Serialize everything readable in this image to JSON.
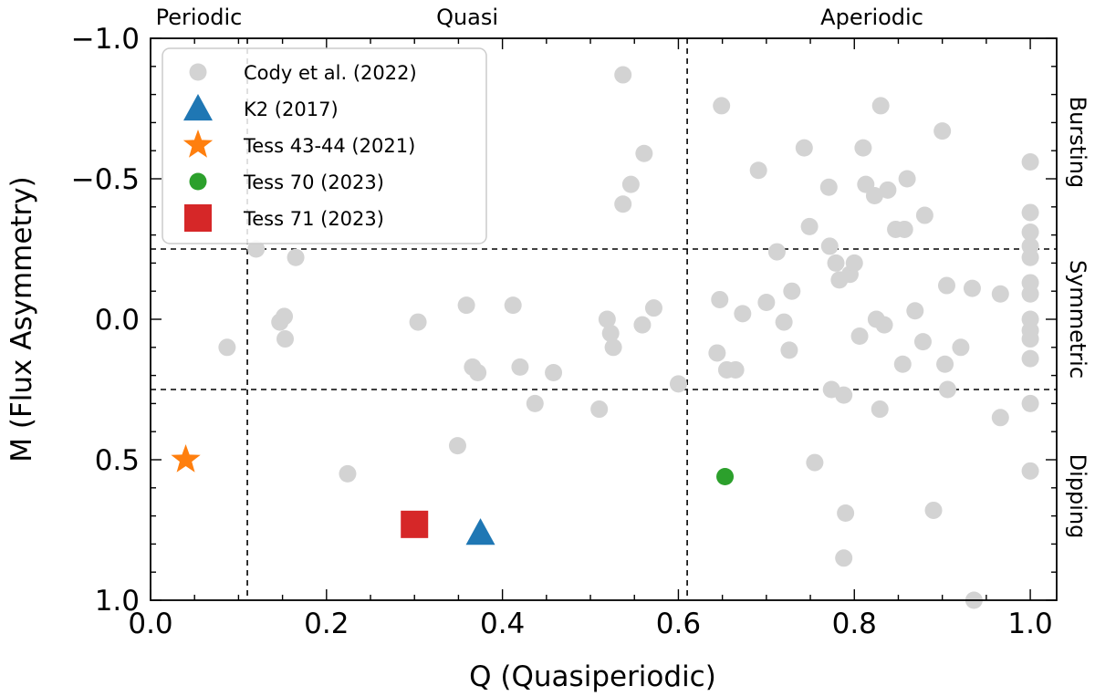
{
  "chart_data": {
    "type": "scatter",
    "xlabel": "Q (Quasiperiodic)",
    "ylabel": "M (Flux Asymmetry)",
    "xlim": [
      0.0,
      1.03
    ],
    "ylim": [
      1.0,
      -1.0
    ],
    "y_inverted": true,
    "x_ticks": [
      {
        "value": 0.0,
        "label": "0.0"
      },
      {
        "value": 0.2,
        "label": "0.2"
      },
      {
        "value": 0.4,
        "label": "0.4"
      },
      {
        "value": 0.6,
        "label": "0.6"
      },
      {
        "value": 0.8,
        "label": "0.8"
      },
      {
        "value": 1.0,
        "label": "1.0"
      }
    ],
    "y_ticks": [
      {
        "value": -1.0,
        "label": "−1.0"
      },
      {
        "value": -0.5,
        "label": "−0.5"
      },
      {
        "value": 0.0,
        "label": "0.0"
      },
      {
        "value": 0.5,
        "label": "0.5"
      },
      {
        "value": 1.0,
        "label": "1.0"
      }
    ],
    "grid": false,
    "legend_position": "top-left",
    "vertical_dividers": [
      0.11,
      0.61
    ],
    "horizontal_dividers": [
      -0.25,
      0.25
    ],
    "top_region_labels": [
      {
        "label": "Periodic",
        "x": 0.055
      },
      {
        "label": "Quasi",
        "x": 0.36
      },
      {
        "label": "Aperiodic",
        "x": 0.82
      }
    ],
    "right_region_labels": [
      {
        "label": "Bursting",
        "y": -0.63
      },
      {
        "label": "Symmetric",
        "y": 0.0
      },
      {
        "label": "Dipping",
        "y": 0.63
      }
    ],
    "series": [
      {
        "name": "Cody et al. (2022)",
        "marker": "circle",
        "color": "#d3d3d3",
        "points": [
          [
            0.537,
            -0.87
          ],
          [
            0.087,
            0.1
          ],
          [
            0.12,
            -0.25
          ],
          [
            0.165,
            -0.22
          ],
          [
            0.147,
            0.01
          ],
          [
            0.152,
            -0.01
          ],
          [
            0.153,
            0.07
          ],
          [
            0.224,
            0.55
          ],
          [
            0.304,
            0.01
          ],
          [
            0.349,
            0.45
          ],
          [
            0.359,
            -0.05
          ],
          [
            0.366,
            0.17
          ],
          [
            0.372,
            0.19
          ],
          [
            0.412,
            -0.05
          ],
          [
            0.42,
            0.17
          ],
          [
            0.437,
            0.3
          ],
          [
            0.458,
            0.19
          ],
          [
            0.51,
            0.32
          ],
          [
            0.519,
            0.0
          ],
          [
            0.523,
            0.05
          ],
          [
            0.526,
            0.1
          ],
          [
            0.537,
            -0.41
          ],
          [
            0.546,
            -0.48
          ],
          [
            0.559,
            0.02
          ],
          [
            0.561,
            -0.59
          ],
          [
            0.572,
            -0.04
          ],
          [
            0.6,
            0.23
          ],
          [
            0.644,
            0.12
          ],
          [
            0.647,
            -0.07
          ],
          [
            0.649,
            -0.76
          ],
          [
            0.655,
            0.18
          ],
          [
            0.665,
            0.18
          ],
          [
            0.673,
            -0.02
          ],
          [
            0.691,
            -0.53
          ],
          [
            0.7,
            -0.06
          ],
          [
            0.712,
            -0.24
          ],
          [
            0.72,
            0.01
          ],
          [
            0.726,
            0.11
          ],
          [
            0.729,
            -0.1
          ],
          [
            0.743,
            -0.61
          ],
          [
            0.749,
            -0.33
          ],
          [
            0.755,
            0.51
          ],
          [
            0.771,
            -0.47
          ],
          [
            0.772,
            -0.26
          ],
          [
            0.774,
            0.25
          ],
          [
            0.779,
            -0.2
          ],
          [
            0.783,
            -0.14
          ],
          [
            0.788,
            0.27
          ],
          [
            0.79,
            0.69
          ],
          [
            0.788,
            0.85
          ],
          [
            0.795,
            -0.16
          ],
          [
            0.8,
            -0.2
          ],
          [
            0.806,
            0.06
          ],
          [
            0.81,
            -0.61
          ],
          [
            0.813,
            -0.48
          ],
          [
            0.823,
            -0.44
          ],
          [
            0.825,
            0.0
          ],
          [
            0.829,
            0.32
          ],
          [
            0.83,
            -0.76
          ],
          [
            0.834,
            0.02
          ],
          [
            0.838,
            -0.46
          ],
          [
            0.847,
            -0.32
          ],
          [
            0.855,
            0.16
          ],
          [
            0.857,
            -0.32
          ],
          [
            0.86,
            -0.5
          ],
          [
            0.869,
            -0.03
          ],
          [
            0.878,
            0.08
          ],
          [
            0.88,
            -0.37
          ],
          [
            0.89,
            0.68
          ],
          [
            0.9,
            -0.67
          ],
          [
            0.903,
            0.16
          ],
          [
            0.905,
            -0.12
          ],
          [
            0.906,
            0.25
          ],
          [
            0.921,
            0.1
          ],
          [
            0.934,
            -0.11
          ],
          [
            0.936,
            1.0
          ],
          [
            0.966,
            -0.09
          ],
          [
            0.966,
            0.35
          ],
          [
            1.0,
            -0.56
          ],
          [
            1.0,
            -0.38
          ],
          [
            1.0,
            -0.31
          ],
          [
            1.0,
            -0.26
          ],
          [
            1.0,
            -0.22
          ],
          [
            1.0,
            -0.13
          ],
          [
            1.0,
            -0.09
          ],
          [
            1.0,
            0.0
          ],
          [
            1.0,
            0.04
          ],
          [
            1.0,
            0.07
          ],
          [
            1.0,
            0.14
          ],
          [
            1.0,
            0.3
          ],
          [
            1.0,
            0.54
          ]
        ]
      },
      {
        "name": "K2 (2017)",
        "marker": "triangle",
        "color": "#1f77b4",
        "points": [
          [
            0.375,
            0.76
          ]
        ]
      },
      {
        "name": "Tess 43-44 (2021)",
        "marker": "star",
        "color": "#ff7f0e",
        "points": [
          [
            0.04,
            0.5
          ]
        ]
      },
      {
        "name": "Tess 70 (2023)",
        "marker": "circle",
        "color": "#2ca02c",
        "points": [
          [
            0.653,
            0.56
          ]
        ]
      },
      {
        "name": "Tess 71 (2023)",
        "marker": "square",
        "color": "#d62728",
        "points": [
          [
            0.3,
            0.73
          ]
        ]
      }
    ]
  }
}
